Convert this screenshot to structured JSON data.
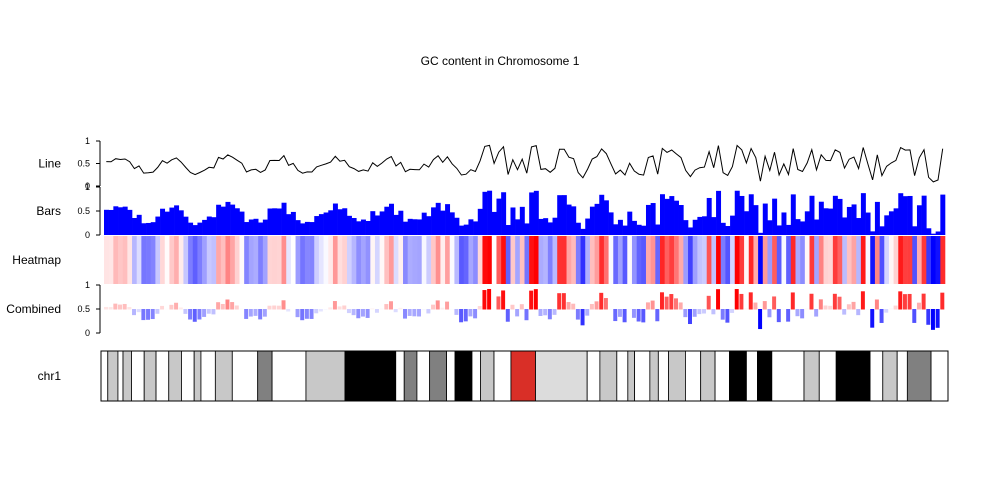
{
  "chart_data": {
    "type": "genome-track",
    "title": "GC content in Chromosome 1",
    "colors": {
      "bar": "#0000ff",
      "line": "#000000",
      "heat_low": "#0000ff",
      "heat_mid": "#ffffff",
      "heat_high": "#ff0000"
    },
    "tracks": [
      {
        "label": "Line",
        "type": "line",
        "ylim": [
          0,
          1
        ],
        "ticks": [
          "0",
          "0.5",
          "1"
        ]
      },
      {
        "label": "Bars",
        "type": "bar",
        "ylim": [
          0,
          1
        ],
        "ticks": [
          "0",
          "0.5",
          "1"
        ]
      },
      {
        "label": "Heatmap",
        "type": "heatmap",
        "ticks": []
      },
      {
        "label": "Combined",
        "type": "bar-heatmap",
        "ylim": [
          0,
          1
        ],
        "baseline": 0.5,
        "ticks": [
          "0",
          "0.5",
          "1"
        ]
      }
    ],
    "ideogram": {
      "label": "chr1",
      "bands": [
        [
          "white",
          0.0,
          0.8
        ],
        [
          "gpos25",
          0.8,
          2.0
        ],
        [
          "white",
          2.0,
          2.6
        ],
        [
          "gpos25",
          2.6,
          3.6
        ],
        [
          "white",
          3.6,
          5.1
        ],
        [
          "gpos25",
          5.1,
          6.5
        ],
        [
          "white",
          6.5,
          8.0
        ],
        [
          "gpos25",
          8.0,
          9.5
        ],
        [
          "white",
          9.5,
          11.0
        ],
        [
          "gpos25",
          11.0,
          11.8
        ],
        [
          "white",
          11.8,
          13.5
        ],
        [
          "gpos25",
          13.5,
          15.5
        ],
        [
          "white",
          15.5,
          18.5
        ],
        [
          "gpos50",
          18.5,
          20.2
        ],
        [
          "white",
          20.2,
          24.2
        ],
        [
          "gpos25",
          24.2,
          28.8
        ],
        [
          "gpos100",
          28.8,
          34.8
        ],
        [
          "white",
          34.8,
          35.8
        ],
        [
          "gpos50",
          35.8,
          37.3
        ],
        [
          "white",
          37.3,
          38.8
        ],
        [
          "gpos50",
          38.8,
          40.8
        ],
        [
          "white",
          40.8,
          41.8
        ],
        [
          "gpos100",
          41.8,
          43.8
        ],
        [
          "white",
          43.8,
          44.8
        ],
        [
          "gpos25",
          44.8,
          46.4
        ],
        [
          "white",
          46.4,
          48.4
        ],
        [
          "acen",
          48.4,
          51.3
        ],
        [
          "gvar",
          51.3,
          57.4
        ],
        [
          "white",
          57.4,
          58.9
        ],
        [
          "gpos25",
          58.9,
          60.9
        ],
        [
          "white",
          60.9,
          62.2
        ],
        [
          "gpos25",
          62.2,
          63.0
        ],
        [
          "white",
          63.0,
          64.8
        ],
        [
          "gpos25",
          64.8,
          65.8
        ],
        [
          "white",
          65.8,
          67.0
        ],
        [
          "gpos25",
          67.0,
          69.0
        ],
        [
          "white",
          69.0,
          70.8
        ],
        [
          "gpos25",
          70.8,
          72.5
        ],
        [
          "white",
          72.5,
          74.2
        ],
        [
          "gpos100",
          74.2,
          76.2
        ],
        [
          "white",
          76.2,
          77.5
        ],
        [
          "gpos100",
          77.5,
          79.2
        ],
        [
          "white",
          79.2,
          83.0
        ],
        [
          "gpos25",
          83.0,
          84.8
        ],
        [
          "white",
          84.8,
          86.8
        ],
        [
          "gpos100",
          86.8,
          90.8
        ],
        [
          "white",
          90.8,
          92.3
        ],
        [
          "gpos25",
          92.3,
          94.0
        ],
        [
          "white",
          94.0,
          95.2
        ],
        [
          "gpos50",
          95.2,
          98.0
        ],
        [
          "white",
          98.0,
          100.0
        ]
      ],
      "band_colors": {
        "white": "#ffffff",
        "gpos25": "#c8c8c8",
        "gpos50": "#808080",
        "gpos100": "#000000",
        "gvar": "#dcdcdc",
        "acen": "#d92f27"
      }
    }
  }
}
